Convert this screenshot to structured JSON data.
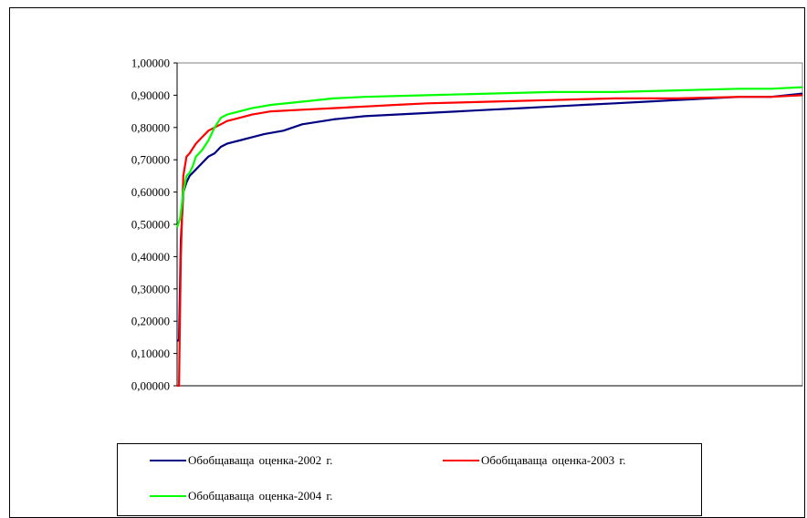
{
  "chart_data": {
    "type": "line",
    "title": "",
    "xlabel": "",
    "ylabel": "",
    "ylim": [
      0,
      1
    ],
    "yticks": [
      "0,00000",
      "0,10000",
      "0,20000",
      "0,30000",
      "0,40000",
      "0,50000",
      "0,60000",
      "0,70000",
      "0,80000",
      "0,90000",
      "1,00000"
    ],
    "xlim": [
      0,
      100
    ],
    "grid": false,
    "legend_position": "bottom",
    "series": [
      {
        "name": "Обобщаваща оценка-2002 г.",
        "color": "#000080",
        "x": [
          0,
          0.3,
          0.6,
          1.0,
          1.5,
          2.0,
          3.0,
          4.0,
          5.0,
          6.0,
          7.0,
          8.0,
          10,
          12,
          14,
          17,
          20,
          25,
          30,
          35,
          40,
          45,
          50,
          55,
          60,
          65,
          70,
          75,
          80,
          85,
          90,
          95,
          100
        ],
        "y": [
          0.14,
          0.14,
          0.45,
          0.6,
          0.63,
          0.65,
          0.67,
          0.69,
          0.71,
          0.72,
          0.74,
          0.75,
          0.76,
          0.77,
          0.78,
          0.79,
          0.81,
          0.825,
          0.835,
          0.84,
          0.845,
          0.85,
          0.855,
          0.86,
          0.865,
          0.87,
          0.875,
          0.88,
          0.885,
          0.89,
          0.895,
          0.895,
          0.905
        ]
      },
      {
        "name": "Обобщаваща оценка-2003 г.",
        "color": "#ff0000",
        "x": [
          0,
          0.3,
          0.6,
          1.0,
          1.5,
          2.0,
          3.0,
          4.0,
          5.0,
          6.0,
          8.0,
          10,
          12,
          15,
          20,
          25,
          30,
          35,
          40,
          50,
          60,
          70,
          80,
          90,
          95,
          100
        ],
        "y": [
          0.0,
          0.0,
          0.4,
          0.65,
          0.71,
          0.72,
          0.75,
          0.77,
          0.79,
          0.8,
          0.82,
          0.83,
          0.84,
          0.85,
          0.855,
          0.86,
          0.865,
          0.87,
          0.875,
          0.88,
          0.885,
          0.89,
          0.89,
          0.895,
          0.895,
          0.9
        ]
      },
      {
        "name": "Обобщаваща оценка-2004 г.",
        "color": "#00ff00",
        "x": [
          0,
          0.5,
          1.0,
          1.5,
          2.0,
          2.5,
          3.0,
          4.0,
          5.0,
          5.5,
          6.0,
          7.0,
          8.0,
          10,
          12,
          15,
          20,
          25,
          30,
          40,
          50,
          60,
          70,
          80,
          90,
          95,
          100
        ],
        "y": [
          0.49,
          0.52,
          0.6,
          0.65,
          0.66,
          0.68,
          0.71,
          0.73,
          0.76,
          0.78,
          0.8,
          0.83,
          0.84,
          0.85,
          0.86,
          0.87,
          0.88,
          0.89,
          0.895,
          0.9,
          0.905,
          0.91,
          0.91,
          0.915,
          0.92,
          0.92,
          0.925
        ]
      }
    ]
  },
  "legend": {
    "items": [
      {
        "label": "Обобщаваща оценка-2002 г.",
        "color": "#000080"
      },
      {
        "label": "Обобщаваща оценка-2003 г.",
        "color": "#ff0000"
      },
      {
        "label": "Обобщаваща оценка-2004 г.",
        "color": "#00ff00"
      }
    ]
  }
}
